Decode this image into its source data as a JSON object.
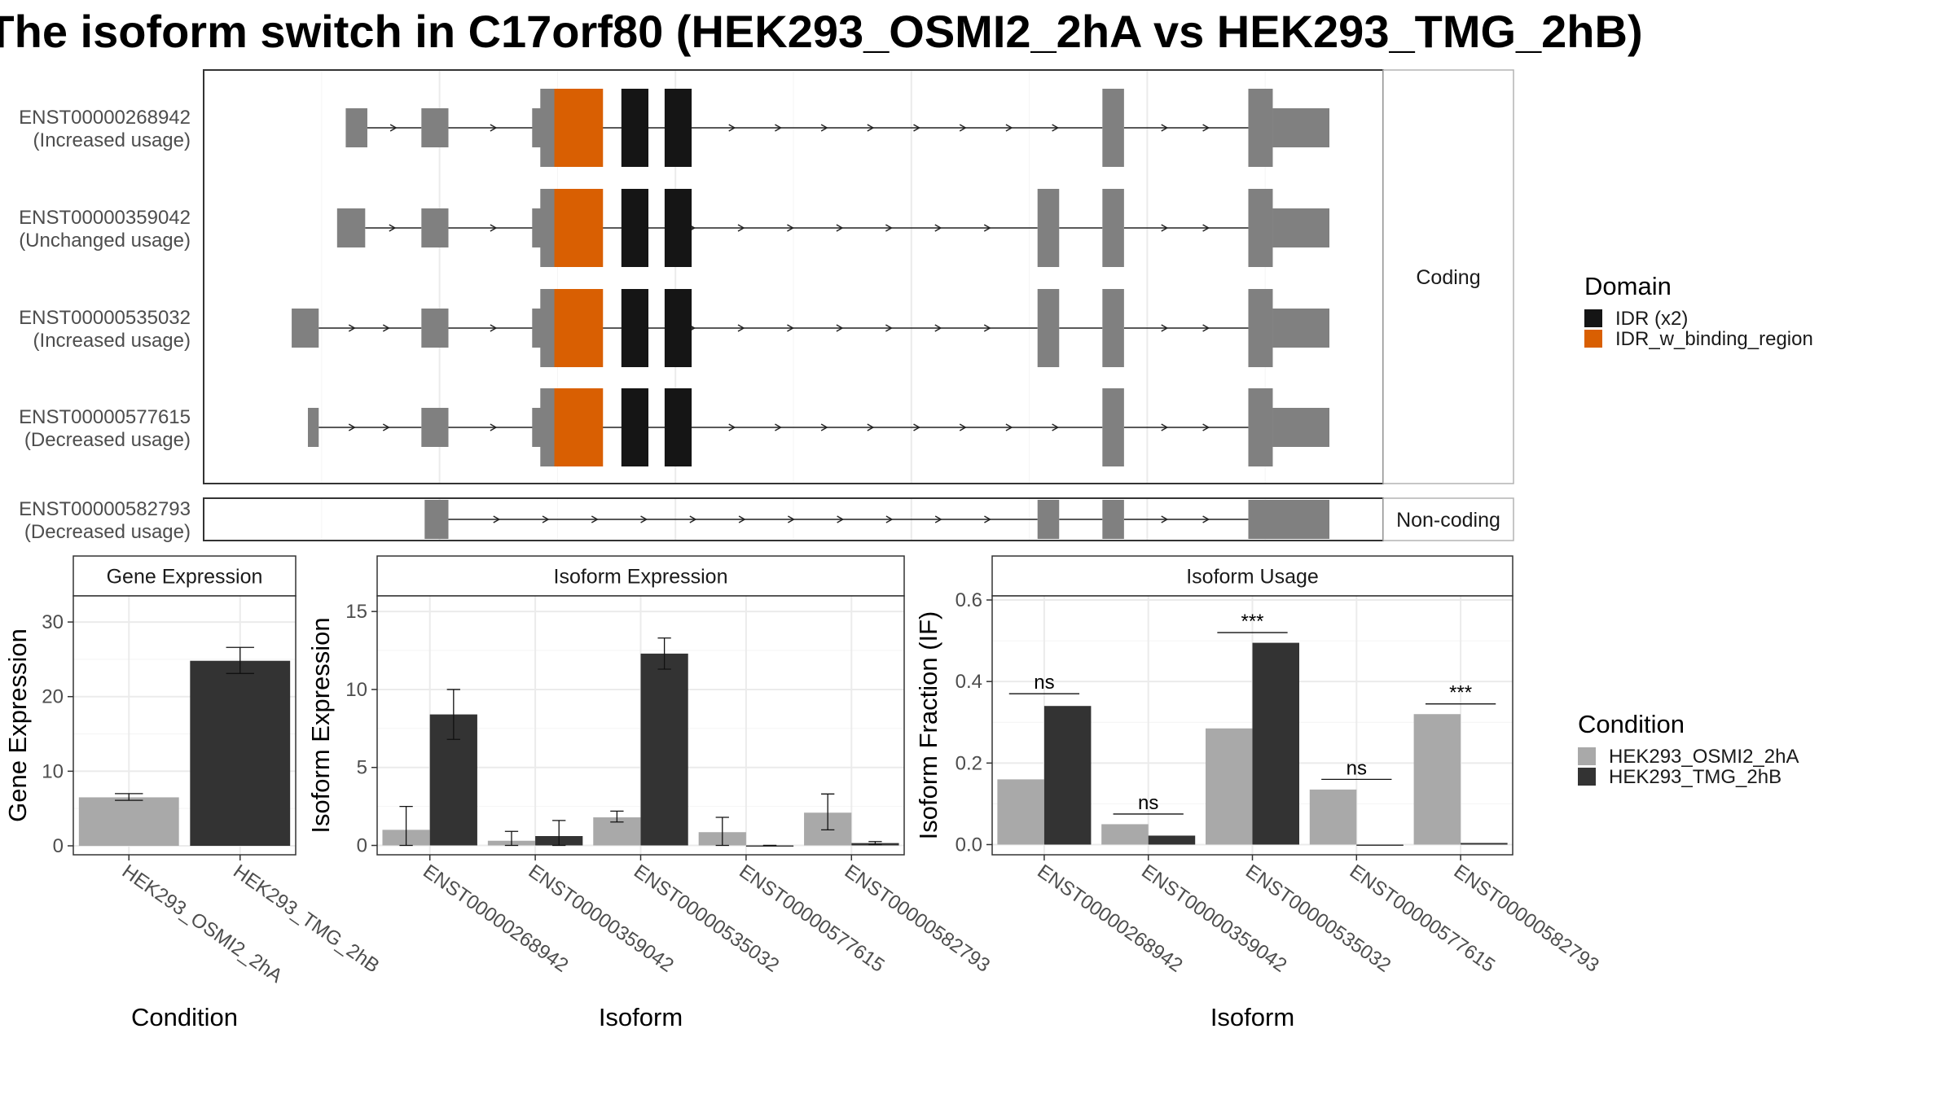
{
  "title": "The isoform switch in C17orf80 (HEK293_OSMI2_2hA vs HEK293_TMG_2hB)",
  "colors": {
    "exon": "#808080",
    "IDR": "#151515",
    "IDR_w_binding_region": "#d95f02",
    "cond1": "#a9a9a9",
    "cond2": "#333333"
  },
  "structure": {
    "coding_label": "Coding",
    "noncoding_label": "Non-coding",
    "transcripts": [
      {
        "name": "ENST00000268942",
        "usage": "(Increased usage)",
        "group": "coding",
        "exons": [
          [
            0.09,
            0.11
          ],
          [
            0.16,
            0.185
          ],
          [
            0.27,
            0.32
          ],
          [
            0.79,
            0.81
          ],
          [
            0.925,
            1.0
          ]
        ],
        "domains": [
          {
            "type": "IDR_w_binding_region",
            "range": [
              0.283,
              0.328
            ]
          },
          {
            "type": "IDR",
            "range": [
              0.345,
              0.37
            ]
          },
          {
            "type": "IDR",
            "range": [
              0.385,
              0.41
            ]
          }
        ]
      },
      {
        "name": "ENST00000359042",
        "usage": "(Unchanged usage)",
        "group": "coding",
        "exons": [
          [
            0.082,
            0.108
          ],
          [
            0.16,
            0.185
          ],
          [
            0.27,
            0.32
          ],
          [
            0.73,
            0.75
          ],
          [
            0.79,
            0.81
          ],
          [
            0.925,
            1.0
          ]
        ],
        "domains": [
          {
            "type": "IDR_w_binding_region",
            "range": [
              0.283,
              0.328
            ]
          },
          {
            "type": "IDR",
            "range": [
              0.345,
              0.37
            ]
          },
          {
            "type": "IDR",
            "range": [
              0.385,
              0.41
            ]
          }
        ]
      },
      {
        "name": "ENST00000535032",
        "usage": "(Increased usage)",
        "group": "coding",
        "exons": [
          [
            0.04,
            0.065
          ],
          [
            0.16,
            0.185
          ],
          [
            0.27,
            0.32
          ],
          [
            0.73,
            0.75
          ],
          [
            0.79,
            0.81
          ],
          [
            0.925,
            1.0
          ]
        ],
        "domains": [
          {
            "type": "IDR_w_binding_region",
            "range": [
              0.283,
              0.328
            ]
          },
          {
            "type": "IDR",
            "range": [
              0.345,
              0.37
            ]
          },
          {
            "type": "IDR",
            "range": [
              0.385,
              0.41
            ]
          }
        ]
      },
      {
        "name": "ENST00000577615",
        "usage": "(Decreased usage)",
        "group": "coding",
        "exons": [
          [
            0.055,
            0.065
          ],
          [
            0.16,
            0.185
          ],
          [
            0.27,
            0.32
          ],
          [
            0.79,
            0.81
          ],
          [
            0.925,
            1.0
          ]
        ],
        "domains": [
          {
            "type": "IDR_w_binding_region",
            "range": [
              0.283,
              0.328
            ]
          },
          {
            "type": "IDR",
            "range": [
              0.345,
              0.37
            ]
          },
          {
            "type": "IDR",
            "range": [
              0.385,
              0.41
            ]
          }
        ]
      },
      {
        "name": "ENST00000582793",
        "usage": "(Decreased usage)",
        "group": "noncoding",
        "exons": [
          [
            0.163,
            0.185
          ],
          [
            0.73,
            0.75
          ],
          [
            0.79,
            0.81
          ],
          [
            0.925,
            1.0
          ]
        ],
        "domains": []
      }
    ]
  },
  "legends": {
    "domain": {
      "title": "Domain",
      "items": [
        {
          "label": "IDR (x2)",
          "key": "IDR"
        },
        {
          "label": "IDR_w_binding_region",
          "key": "IDR_w_binding_region"
        }
      ]
    },
    "condition": {
      "title": "Condition",
      "items": [
        {
          "label": "HEK293_OSMI2_2hA",
          "key": "cond1"
        },
        {
          "label": "HEK293_TMG_2hB",
          "key": "cond2"
        }
      ]
    }
  },
  "chart_data": [
    {
      "type": "bar",
      "title": "Gene Expression",
      "xlabel": "Condition",
      "ylabel": "Gene Expression",
      "categories": [
        "HEK293_OSMI2_2hA",
        "HEK293_TMG_2hB"
      ],
      "values": [
        6.5,
        24.8
      ],
      "errors": [
        [
          6.1,
          7.0
        ],
        [
          23.1,
          26.6
        ]
      ],
      "ylim": [
        -1.2,
        33.5
      ],
      "yticks": [
        0,
        10,
        20,
        30
      ]
    },
    {
      "type": "bar",
      "title": "Isoform Expression",
      "xlabel": "Isoform",
      "ylabel": "Isoform Expression",
      "categories": [
        "ENST00000268942",
        "ENST00000359042",
        "ENST00000535032",
        "ENST00000577615",
        "ENST00000582793"
      ],
      "series": [
        {
          "name": "HEK293_OSMI2_2hA",
          "values": [
            1.0,
            0.3,
            1.8,
            0.85,
            2.1
          ],
          "errors": [
            [
              0.0,
              2.5
            ],
            [
              0.0,
              0.9
            ],
            [
              1.5,
              2.2
            ],
            [
              0.0,
              1.8
            ],
            [
              1.0,
              3.3
            ]
          ]
        },
        {
          "name": "HEK293_TMG_2hB",
          "values": [
            8.4,
            0.6,
            12.3,
            0.0,
            0.15
          ],
          "errors": [
            [
              6.8,
              10.0
            ],
            [
              0.0,
              1.6
            ],
            [
              11.3,
              13.3
            ],
            [
              0.0,
              0.0
            ],
            [
              0.05,
              0.25
            ]
          ]
        }
      ],
      "ylim": [
        -0.6,
        16.0
      ],
      "yticks": [
        0,
        5,
        10,
        15
      ]
    },
    {
      "type": "bar",
      "title": "Isoform Usage",
      "xlabel": "Isoform",
      "ylabel": "Isoform Fraction (IF)",
      "categories": [
        "ENST00000268942",
        "ENST00000359042",
        "ENST00000535032",
        "ENST00000577615",
        "ENST00000582793"
      ],
      "series": [
        {
          "name": "HEK293_OSMI2_2hA",
          "values": [
            0.16,
            0.05,
            0.285,
            0.135,
            0.32
          ]
        },
        {
          "name": "HEK293_TMG_2hB",
          "values": [
            0.34,
            0.022,
            0.495,
            0.0,
            0.004
          ]
        }
      ],
      "annotations": [
        {
          "category": "ENST00000268942",
          "label": "ns",
          "y": 0.37
        },
        {
          "category": "ENST00000359042",
          "label": "ns",
          "y": 0.075
        },
        {
          "category": "ENST00000535032",
          "label": "***",
          "y": 0.52
        },
        {
          "category": "ENST00000577615",
          "label": "ns",
          "y": 0.16
        },
        {
          "category": "ENST00000582793",
          "label": "***",
          "y": 0.345
        }
      ],
      "ylim": [
        -0.025,
        0.61
      ],
      "yticks": [
        0.0,
        0.2,
        0.4,
        0.6
      ],
      "ytick_labels": [
        "0.0",
        "0.2",
        "0.4",
        "0.6"
      ]
    }
  ]
}
